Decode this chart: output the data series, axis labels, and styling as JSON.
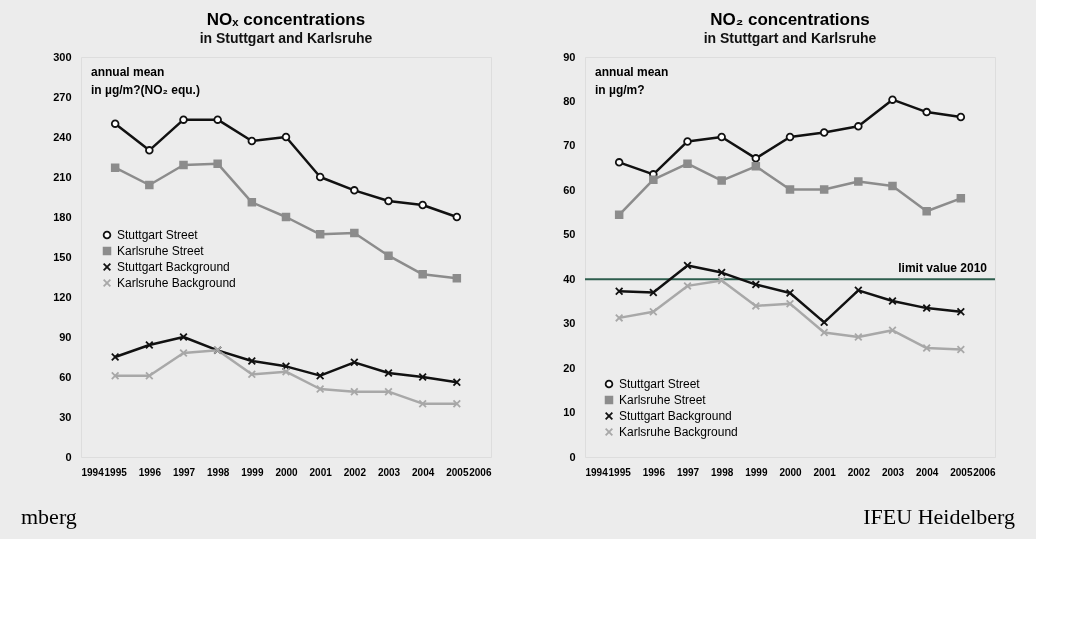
{
  "chart_data": [
    {
      "type": "line",
      "title": "NOₓ concentrations",
      "subtitle": "in Stuttgart and Karlsruhe",
      "annotations": [
        "annual mean\nin µg/m?(NO₂ equ.)",
        "mberg"
      ],
      "x": [
        1995,
        1996,
        1997,
        1998,
        1999,
        2000,
        2001,
        2002,
        2003,
        2004,
        2005
      ],
      "xlim": [
        1994,
        2006
      ],
      "xticks": [
        1994,
        1995,
        1996,
        1997,
        1998,
        1999,
        2000,
        2001,
        2002,
        2003,
        2004,
        2005,
        2006
      ],
      "ylim": [
        0,
        300
      ],
      "yticks": [
        0,
        30,
        60,
        90,
        120,
        150,
        180,
        210,
        240,
        270,
        300
      ],
      "grid": false,
      "legend": "left",
      "line_style": "solid",
      "series": [
        {
          "name": "Stuttgart Street",
          "color": "#111111",
          "marker": "circle",
          "values": [
            250,
            230,
            253,
            253,
            237,
            240,
            210,
            200,
            192,
            189,
            180
          ]
        },
        {
          "name": "Karlsruhe Street",
          "color": "#8c8c8c",
          "marker": "square",
          "values": [
            217,
            204,
            219,
            220,
            191,
            180,
            167,
            168,
            151,
            137,
            134
          ]
        },
        {
          "name": "Stuttgart Background",
          "color": "#111111",
          "marker": "cross",
          "values": [
            75,
            84,
            90,
            80,
            72,
            68,
            61,
            71,
            63,
            60,
            56
          ]
        },
        {
          "name": "Karlsruhe Background",
          "color": "#a8a8a8",
          "marker": "cross",
          "values": [
            61,
            61,
            78,
            80,
            62,
            64,
            51,
            49,
            49,
            40,
            40
          ]
        }
      ]
    },
    {
      "type": "line",
      "title": "NO₂ concentrations",
      "subtitle": "in Stuttgart and Karlsruhe",
      "annotations": [
        "annual mean\nin µg/m?",
        "IFEU Heidelberg"
      ],
      "x": [
        1995,
        1996,
        1997,
        1998,
        1999,
        2000,
        2001,
        2002,
        2003,
        2004,
        2005
      ],
      "xlim": [
        1994,
        2006
      ],
      "xticks": [
        1994,
        1995,
        1996,
        1997,
        1998,
        1999,
        2000,
        2001,
        2002,
        2003,
        2004,
        2005,
        2006
      ],
      "ylim": [
        0,
        90
      ],
      "yticks": [
        0,
        10,
        20,
        30,
        40,
        50,
        60,
        70,
        80,
        90
      ],
      "grid": false,
      "legend": "bottom left",
      "line_style": "solid",
      "ref_lines": [
        {
          "axis": "y",
          "value": 40,
          "label": "limit value 2010",
          "color": "#2e5e4e"
        }
      ],
      "series": [
        {
          "name": "Stuttgart Street",
          "color": "#111111",
          "marker": "circle",
          "values": [
            66.3,
            63.6,
            71,
            72,
            67.2,
            72,
            73,
            74.4,
            80.4,
            77.6,
            76.5
          ]
        },
        {
          "name": "Karlsruhe Street",
          "color": "#8c8c8c",
          "marker": "square",
          "values": [
            54.5,
            62.4,
            66,
            62.2,
            65.4,
            60.2,
            60.2,
            62,
            61,
            55.3,
            58.2
          ]
        },
        {
          "name": "Stuttgart Background",
          "color": "#111111",
          "marker": "cross",
          "values": [
            37.3,
            37,
            43.1,
            41.5,
            38.8,
            36.9,
            30.3,
            37.5,
            35.1,
            33.5,
            32.7
          ]
        },
        {
          "name": "Karlsruhe Background",
          "color": "#a8a8a8",
          "marker": "cross",
          "values": [
            31.3,
            32.7,
            38.5,
            39.7,
            34,
            34.5,
            28,
            27,
            28.5,
            24.5,
            24.2
          ]
        }
      ]
    }
  ]
}
